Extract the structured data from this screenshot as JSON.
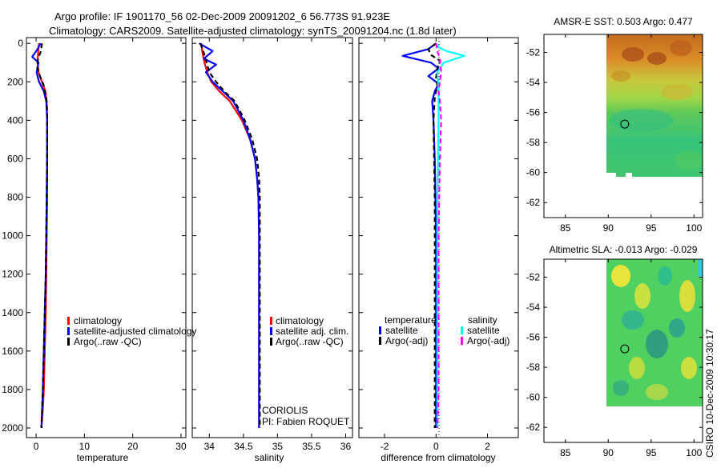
{
  "titles": {
    "line1": "Argo profile: IF 1901170_56 02-Dec-2009 20091202_6 56.773S 91.923E",
    "line2": "Climatology: CARS2009. Satellite-adjusted climatology: synTS_20091204.nc (1.8d later)"
  },
  "credit": "CSIRO 10-Dec-2009 10:30:17",
  "colors": {
    "climatology": "#ff0000",
    "satellite": "#0000ff",
    "argo": "#000000",
    "salinity_satellite": "#00ffff",
    "salinity_argo": "#ff00ff"
  },
  "chart_data": [
    {
      "id": "temperature",
      "type": "line",
      "xlabel": "temperature",
      "ylabel": "",
      "xlim": [
        -2,
        31
      ],
      "ylim": [
        2050,
        -30
      ],
      "xticks": [
        0,
        10,
        20,
        30
      ],
      "yticks": [
        0,
        200,
        400,
        600,
        800,
        1000,
        1200,
        1400,
        1600,
        1800,
        2000
      ],
      "legend": [
        "climatology",
        "satellite-adjusted climatology",
        "Argo(..raw -QC)"
      ],
      "series": [
        {
          "name": "climatology",
          "color": "#ff0000",
          "dashed": false,
          "x": [
            0.6,
            0.4,
            0.3,
            0.5,
            1.2,
            1.9,
            2.2,
            2.3,
            2.3,
            2.3,
            2.2,
            2.1,
            2.0,
            1.8,
            1.6,
            1.4,
            1.1
          ],
          "y": [
            0,
            50,
            100,
            150,
            200,
            250,
            300,
            400,
            600,
            800,
            1000,
            1200,
            1400,
            1600,
            1800,
            1900,
            2000
          ]
        },
        {
          "name": "satellite",
          "color": "#0000ff",
          "dashed": false,
          "x": [
            0.9,
            0.3,
            -0.8,
            0.5,
            0.1,
            0.6,
            1.6,
            2.1,
            2.3,
            2.3,
            2.2,
            2.1,
            2.0,
            1.8,
            1.6,
            1.4,
            1.1
          ],
          "y": [
            0,
            30,
            70,
            100,
            150,
            200,
            250,
            300,
            400,
            600,
            800,
            1000,
            1200,
            1400,
            1600,
            1800,
            2000
          ]
        },
        {
          "name": "Argo",
          "color": "#000000",
          "dashed": true,
          "x": [
            1.2,
            1.0,
            0.4,
            0.2,
            0.8,
            1.6,
            2.1,
            2.3,
            2.3,
            2.2,
            2.1,
            2.0,
            1.8,
            1.6,
            1.4,
            1.1
          ],
          "y": [
            0,
            40,
            80,
            120,
            170,
            220,
            280,
            350,
            500,
            800,
            1000,
            1200,
            1400,
            1600,
            1800,
            2000
          ]
        }
      ]
    },
    {
      "id": "salinity",
      "type": "line",
      "xlabel": "salinity",
      "ylabel": "",
      "xlim": [
        33.75,
        36.1
      ],
      "ylim": [
        2050,
        -30
      ],
      "xticks": [
        34,
        34.5,
        35,
        35.5,
        36
      ],
      "yticks": [
        0,
        200,
        400,
        600,
        800,
        1000,
        1200,
        1400,
        1600,
        1800,
        2000
      ],
      "legend": [
        "climatology",
        "satellite adj. clim.",
        "Argo(..raw -QC)"
      ],
      "annotation": [
        "CORIOLIS",
        "PI: Fabien ROQUET"
      ],
      "series": [
        {
          "name": "climatology",
          "color": "#ff0000",
          "dashed": false,
          "x": [
            33.88,
            33.9,
            33.93,
            33.97,
            34.03,
            34.15,
            34.3,
            34.48,
            34.6,
            34.67,
            34.7,
            34.72,
            34.73,
            34.73,
            34.73,
            34.73
          ],
          "y": [
            0,
            50,
            100,
            150,
            200,
            250,
            300,
            400,
            500,
            600,
            700,
            800,
            1000,
            1400,
            1800,
            2000
          ]
        },
        {
          "name": "satellite",
          "color": "#0000ff",
          "dashed": false,
          "x": [
            33.85,
            34.05,
            33.92,
            34.1,
            33.95,
            34.05,
            34.2,
            34.35,
            34.5,
            34.6,
            34.67,
            34.7,
            34.72,
            34.73,
            34.73,
            34.73
          ],
          "y": [
            0,
            40,
            80,
            110,
            150,
            200,
            250,
            300,
            400,
            500,
            600,
            700,
            800,
            1000,
            1600,
            2000
          ]
        },
        {
          "name": "Argo",
          "color": "#000000",
          "dashed": true,
          "x": [
            33.87,
            33.92,
            33.96,
            34.0,
            34.1,
            34.22,
            34.37,
            34.52,
            34.63,
            34.7,
            34.73,
            34.74,
            34.74,
            34.74
          ],
          "y": [
            0,
            50,
            100,
            150,
            200,
            250,
            300,
            400,
            500,
            600,
            700,
            800,
            1200,
            2000
          ]
        }
      ]
    },
    {
      "id": "difference",
      "type": "line",
      "xlabel": "difference from climatology",
      "ylabel": "",
      "xlim": [
        -3,
        3.2
      ],
      "ylim": [
        2050,
        -30
      ],
      "xticks": [
        -2,
        0,
        2
      ],
      "yticks": [
        0,
        200,
        400,
        600,
        800,
        1000,
        1200,
        1400,
        1600,
        1800,
        2000
      ],
      "legend_headers": [
        "temperature",
        "salinity"
      ],
      "legend": [
        "satellite",
        "Argo(-adj)",
        "satellite",
        "Argo(-adj)"
      ],
      "series": [
        {
          "name": "temperature satellite",
          "color": "#0000ff",
          "dashed": false,
          "x": [
            0,
            -0.3,
            -1.3,
            -0.2,
            0.1,
            -0.3,
            0.1,
            -0.05,
            -0.15,
            -0.1,
            -0.05,
            0,
            0,
            0
          ],
          "y": [
            0,
            30,
            65,
            100,
            130,
            170,
            210,
            250,
            300,
            400,
            600,
            1000,
            1500,
            2000
          ]
        },
        {
          "name": "temperature Argo",
          "color": "#000000",
          "dashed": true,
          "x": [
            0,
            -0.3,
            -0.2,
            0.15,
            0.05,
            0,
            0.05,
            -0.05,
            -0.1,
            -0.05,
            -0.05,
            -0.05,
            -0.05
          ],
          "y": [
            0,
            30,
            60,
            90,
            130,
            180,
            220,
            280,
            400,
            800,
            1200,
            1600,
            2000
          ]
        },
        {
          "name": "salinity satellite",
          "color": "#00ffff",
          "dashed": false,
          "x": [
            0,
            0.1,
            0.4,
            1.1,
            0.3,
            0.05,
            0.1,
            0.1,
            0.05,
            0.05,
            0.05,
            0.05
          ],
          "y": [
            0,
            20,
            40,
            65,
            100,
            150,
            250,
            400,
            800,
            1200,
            1600,
            2000
          ]
        },
        {
          "name": "salinity Argo",
          "color": "#ff00ff",
          "dashed": true,
          "x": [
            0,
            0.05,
            0.15,
            0.2,
            0.1,
            0.15,
            0.2,
            0.15,
            0.1,
            0.1,
            0.1,
            0.05
          ],
          "y": [
            0,
            40,
            80,
            150,
            250,
            300,
            400,
            600,
            1000,
            1400,
            1800,
            2000
          ]
        }
      ]
    },
    {
      "id": "sst_map",
      "type": "heatmap",
      "title": "AMSR-E SST: 0.503 Argo: 0.477",
      "xlim": [
        82.5,
        101
      ],
      "ylim": [
        -63,
        -50.8
      ],
      "xticks": [
        85,
        90,
        95,
        100
      ],
      "yticks": [
        -52,
        -54,
        -56,
        -58,
        -60,
        -62
      ],
      "extent": [
        90,
        101,
        -60,
        -50.8
      ],
      "marker": {
        "lon": 91.923,
        "lat": -56.773
      }
    },
    {
      "id": "sla_map",
      "type": "heatmap",
      "title": "Altimetric SLA: -0.013 Argo: -0.029",
      "xlim": [
        82.5,
        101
      ],
      "ylim": [
        -63,
        -50.8
      ],
      "xticks": [
        85,
        90,
        95,
        100
      ],
      "yticks": [
        -52,
        -54,
        -56,
        -58,
        -60,
        -62
      ],
      "extent": [
        90,
        101,
        -60,
        -50.8
      ],
      "marker": {
        "lon": 91.923,
        "lat": -56.773
      }
    }
  ]
}
